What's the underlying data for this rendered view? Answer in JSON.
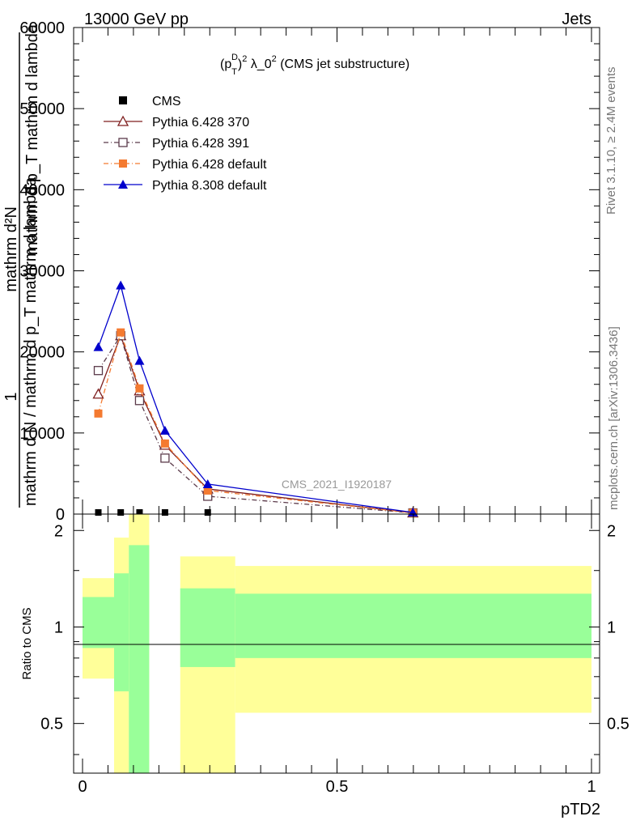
{
  "header": {
    "left": "13000 GeV pp",
    "right": "Jets"
  },
  "side_text": {
    "rivet": "Rivet 3.1.10, ≥ 2.4M events",
    "mcplots": "mcplots.cern.ch [arXiv:1306.3436]"
  },
  "chart_data": [
    {
      "type": "line",
      "title": "(p_T^D)^2 λ_0^2 (CMS jet substructure)",
      "title_parts": {
        "a": "(p",
        "sub": "T",
        "sup1": "D",
        "b": ")",
        "sup2": "2",
        "c": " λ_0",
        "sup3": "2",
        "d": " (CMS jet substructure)"
      },
      "ylabel_num": "mathrm d²N",
      "ylabel_den1": "mathrm d p_T mathrm d lambda",
      "ylabel_den2": "mathrm d N / mathrm d p_T mathrm d lambda",
      "ylabel_one": "1",
      "watermark": "CMS_2021_I1920187",
      "xlim": [
        0,
        1
      ],
      "ylim": [
        0,
        60000
      ],
      "yticks": [
        0,
        10000,
        20000,
        30000,
        40000,
        50000,
        60000
      ],
      "ytick_labels": [
        "0",
        "10000",
        "20000",
        "30000",
        "40000",
        "50000",
        "60000"
      ],
      "legend_position": "top-left",
      "series": [
        {
          "name": "CMS",
          "color": "#000000",
          "marker": "square-filled",
          "dash": "",
          "points": [
            [
              0.031,
              0
            ],
            [
              0.075,
              0
            ],
            [
              0.112,
              0
            ],
            [
              0.162,
              0
            ],
            [
              0.246,
              0
            ],
            [
              0.649,
              0
            ]
          ]
        },
        {
          "name": "Pythia 6.428 370",
          "color": "#7f1f1f",
          "marker": "triangle-open",
          "dash": "",
          "points": [
            [
              0.031,
              14800
            ],
            [
              0.075,
              22000
            ],
            [
              0.112,
              15200
            ],
            [
              0.162,
              8500
            ],
            [
              0.246,
              3100
            ],
            [
              0.649,
              150
            ]
          ]
        },
        {
          "name": "Pythia 6.428 391",
          "color": "#5b3a4a",
          "marker": "square-open",
          "dash": "6,3,1,3",
          "points": [
            [
              0.031,
              17700
            ],
            [
              0.075,
              22000
            ],
            [
              0.112,
              14000
            ],
            [
              0.162,
              6900
            ],
            [
              0.246,
              2200
            ],
            [
              0.649,
              150
            ]
          ]
        },
        {
          "name": "Pythia 6.428 default",
          "color": "#f47a30",
          "marker": "square-filled",
          "dash": "6,3,1,3",
          "points": [
            [
              0.031,
              12400
            ],
            [
              0.075,
              22400
            ],
            [
              0.112,
              15500
            ],
            [
              0.162,
              8700
            ],
            [
              0.246,
              2900
            ],
            [
              0.649,
              150
            ]
          ]
        },
        {
          "name": "Pythia 8.308 default",
          "color": "#0000cc",
          "marker": "triangle-filled",
          "dash": "",
          "points": [
            [
              0.031,
              20600
            ],
            [
              0.075,
              28200
            ],
            [
              0.112,
              18900
            ],
            [
              0.162,
              10300
            ],
            [
              0.246,
              3700
            ],
            [
              0.649,
              200
            ]
          ]
        }
      ]
    },
    {
      "type": "area",
      "ylabel": "Ratio to CMS",
      "xlabel": "pTD2",
      "xlim": [
        0,
        1
      ],
      "ylim": [
        0.35,
        2.25
      ],
      "y_scale": "log",
      "yticks": [
        0.5,
        1,
        2
      ],
      "ytick_labels": [
        "0.5",
        "1",
        "2"
      ],
      "xticks": [
        0,
        0.5,
        1
      ],
      "xtick_labels": [
        "0",
        "0.5",
        "1"
      ],
      "reference_line": 1,
      "colors": {
        "green": "#99ff99",
        "yellow": "#ffff99"
      },
      "bins": [
        {
          "x0": 0.0,
          "x1": 0.062,
          "green": [
            0.86,
            1.24
          ],
          "yellow": [
            0.69,
            1.42
          ]
        },
        {
          "x0": 0.062,
          "x1": 0.091,
          "green": [
            0.63,
            1.47
          ],
          "yellow": [
            0.35,
            1.9
          ]
        },
        {
          "x0": 0.091,
          "x1": 0.131,
          "green": [
            0.35,
            1.8
          ],
          "yellow": [
            0.35,
            2.25
          ]
        },
        {
          "x0": 0.131,
          "x1": 0.192,
          "green": [
            1.0,
            1.0
          ],
          "yellow": [
            1.0,
            1.0
          ]
        },
        {
          "x0": 0.192,
          "x1": 0.3,
          "green": [
            0.75,
            1.32
          ],
          "yellow": [
            0.35,
            1.66
          ]
        },
        {
          "x0": 0.3,
          "x1": 1.0,
          "green": [
            0.8,
            1.27
          ],
          "yellow": [
            0.54,
            1.55
          ]
        }
      ]
    }
  ]
}
